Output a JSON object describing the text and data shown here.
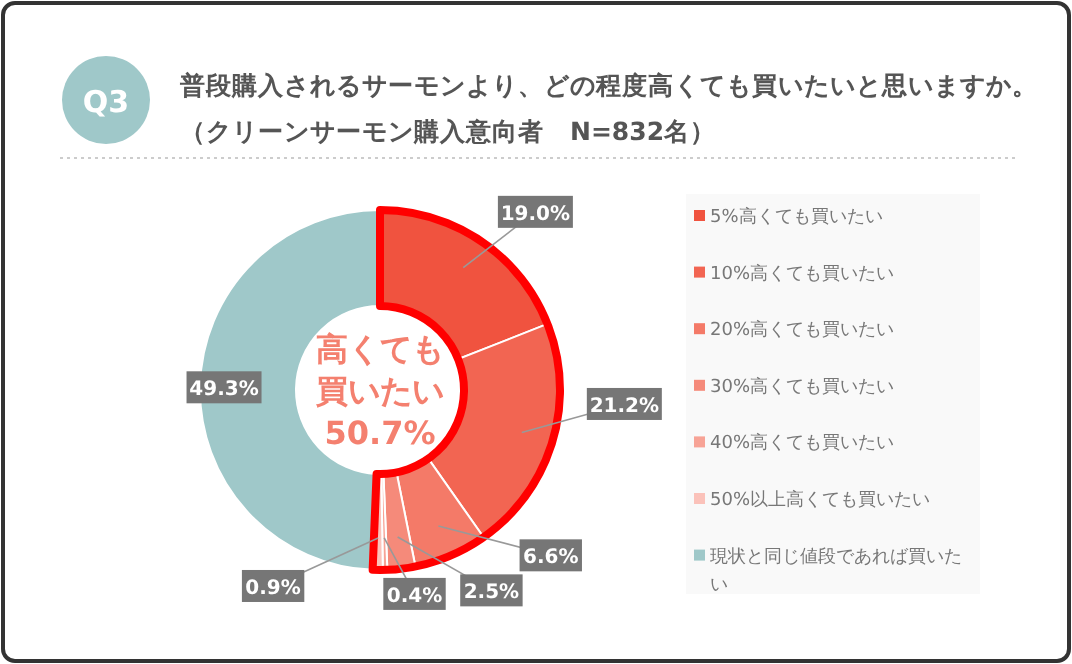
{
  "chart_data": {
    "type": "donut",
    "title": "普段購入されるサーモンより、どの程度高くても買いたいと思いますか。",
    "subtitle": "（クリーンサーモン購入意向者　N=832名）",
    "categories": [
      "5%高くても買いたい",
      "10%高くても買いたい",
      "20%高くても買いたい",
      "30%高くても買いたい",
      "40%高くても買いたい",
      "50%以上高くても買いたい",
      "現状と同じ値段であれば買いたい"
    ],
    "values": [
      19.0,
      21.2,
      6.6,
      2.5,
      0.4,
      0.9,
      49.3
    ],
    "colors": [
      "#f0533f",
      "#f26552",
      "#f47a68",
      "#f58a7a",
      "#f7a396",
      "#fbc2ba",
      "#9fc8c9"
    ],
    "value_labels": [
      "19.0%",
      "21.2%",
      "6.6%",
      "2.5%",
      "0.4%",
      "0.9%",
      "49.3%"
    ],
    "legend": "right",
    "annotations": [
      "Q3",
      "高くても",
      "買いたい",
      "50.7%"
    ]
  }
}
